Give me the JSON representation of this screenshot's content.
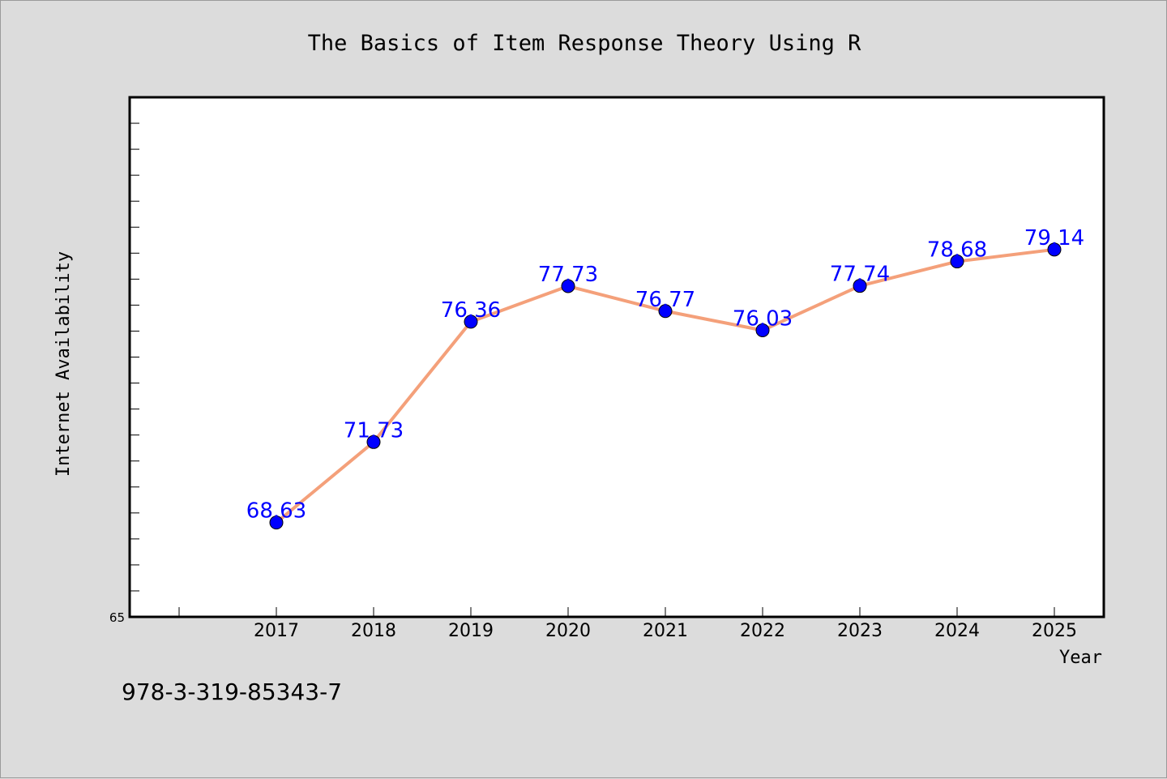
{
  "chart_data": {
    "type": "line",
    "title": "The Basics of Item Response Theory Using R",
    "xlabel": "Year",
    "ylabel": "Internet Availability",
    "categories": [
      "2017",
      "2018",
      "2019",
      "2020",
      "2021",
      "2022",
      "2023",
      "2024",
      "2025"
    ],
    "series": [
      {
        "values": [
          68.63,
          71.73,
          76.36,
          77.73,
          76.77,
          76.03,
          77.74,
          78.68,
          79.14
        ],
        "line_color": "#f4a07a",
        "marker_color": "#0000ff"
      }
    ],
    "data_labels": [
      "68.63",
      "71.73",
      "76.36",
      "77.73",
      "76.77",
      "76.03",
      "77.74",
      "78.68",
      "79.14"
    ],
    "ylim": [
      65,
      85
    ],
    "y_tick_labels": [
      "65"
    ],
    "y_minor_tick_step": 1,
    "grid": false,
    "legend": "none"
  },
  "footnote": "978-3-319-85343-7",
  "colors": {
    "background": "#dcdcdc",
    "plot_area": "#ffffff",
    "line": "#f4a07a",
    "marker": "#0000ff",
    "data_label": "#0000ff"
  }
}
